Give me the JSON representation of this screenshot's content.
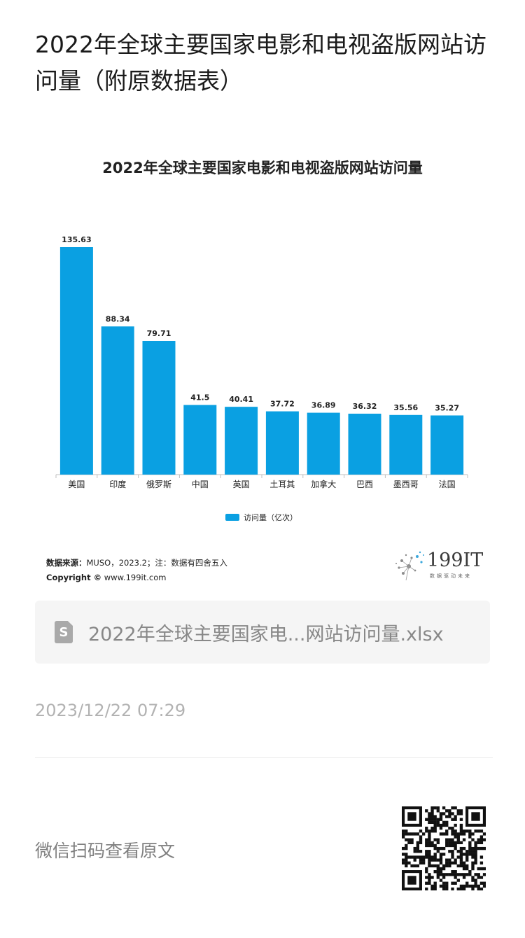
{
  "article": {
    "title": "2022年全球主要国家电影和电视盗版网站访问量（附原数据表）",
    "file_name": "2022年全球主要国家电...网站访问量.xlsx",
    "file_icon_letter": "S",
    "timestamp": "2023/12/22 07:29",
    "scan_text": "微信扫码查看原文"
  },
  "chart_source": {
    "label": "数据来源：",
    "text": "MUSO，2023.2；注：数据有四舍五入",
    "copyright_label": "Copyright ©",
    "copyright_text": " www.199it.com",
    "brand": "199IT",
    "brand_sub": "数据驱动未来"
  },
  "chart_data": {
    "type": "bar",
    "title": "2022年全球主要国家电影和电视盗版网站访问量",
    "categories": [
      "美国",
      "印度",
      "俄罗斯",
      "中国",
      "英国",
      "土耳其",
      "加拿大",
      "巴西",
      "墨西哥",
      "法国"
    ],
    "series": [
      {
        "name": "访问量（亿次）",
        "values": [
          135.63,
          88.34,
          79.71,
          41.5,
          40.41,
          37.72,
          36.89,
          36.32,
          35.56,
          35.27
        ]
      }
    ],
    "value_labels": [
      "135.63",
      "88.34",
      "79.71",
      "41.5",
      "40.41",
      "37.72",
      "36.89",
      "36.32",
      "35.56",
      "35.27"
    ],
    "ylim": [
      0,
      135.63
    ],
    "legend_position": "bottom",
    "grid": false,
    "bar_color": "#0aa0e2"
  }
}
